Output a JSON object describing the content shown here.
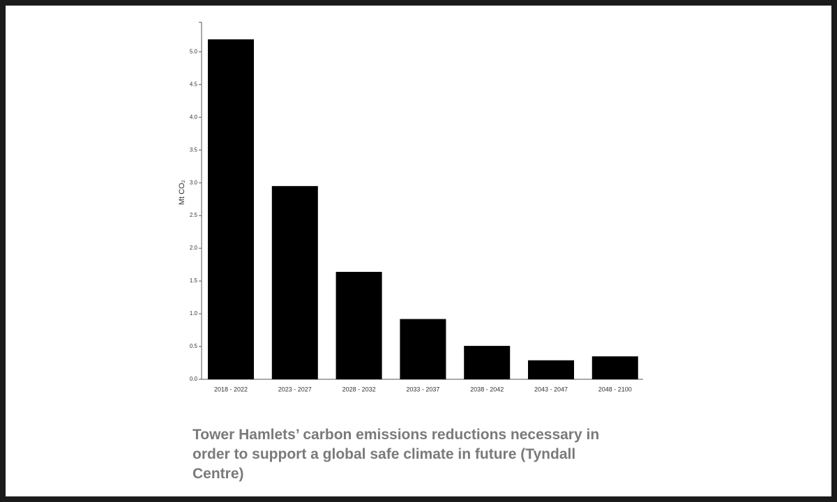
{
  "chart_data": {
    "type": "bar",
    "y_label": "Mt CO₂",
    "categories": [
      "2018 - 2022",
      "2023 - 2027",
      "2028 - 2032",
      "2033 - 2037",
      "2038 - 2042",
      "2043 - 2047",
      "2048 - 2100"
    ],
    "values": [
      5.19,
      2.95,
      1.64,
      0.92,
      0.51,
      0.29,
      0.35
    ],
    "color": "#000000",
    "ylim": [
      0,
      5.45
    ],
    "yticks": [
      {
        "value": 0,
        "label": "0.0"
      },
      {
        "value": 0.5,
        "label": "0.5"
      },
      {
        "value": 1,
        "label": "1.0"
      },
      {
        "value": 1.5,
        "label": "1.5"
      },
      {
        "value": 2,
        "label": "2.0"
      },
      {
        "value": 2.5,
        "label": "2.5"
      },
      {
        "value": 3,
        "label": "3.0"
      },
      {
        "value": 3.5,
        "label": "3.5"
      },
      {
        "value": 4,
        "label": "4.0"
      },
      {
        "value": 4.5,
        "label": "4.5"
      },
      {
        "value": 5,
        "label": "5.0"
      }
    ],
    "grid": false,
    "caption": "Tower Hamlets’ carbon emissions reductions necessary in order to support a global safe climate in future (Tyndall Centre)"
  }
}
